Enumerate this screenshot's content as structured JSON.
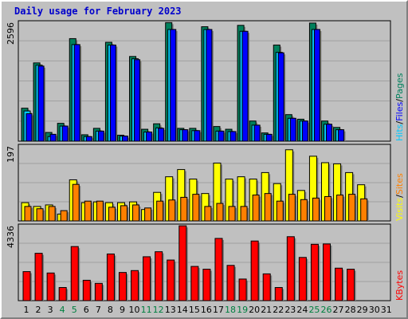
{
  "chart_data": {
    "type": "bar",
    "title": "Daily usage for February 2023",
    "colors": {
      "pages": "#00805c",
      "files": "#0000ff",
      "hits": "#00c8ff",
      "visits": "#ffff00",
      "sites": "#ff8000",
      "kbytes": "#ff0000",
      "weekend_day": "#008040",
      "weekday": "#000000",
      "background": "#c0c0c0"
    },
    "categories": [
      "1",
      "2",
      "3",
      "4",
      "5",
      "6",
      "7",
      "8",
      "9",
      "10",
      "11",
      "12",
      "13",
      "14",
      "15",
      "16",
      "17",
      "18",
      "19",
      "20",
      "21",
      "22",
      "23",
      "24",
      "25",
      "26",
      "27",
      "28",
      "29",
      "30",
      "31"
    ],
    "weekend_days": [
      "4",
      "5",
      "11",
      "12",
      "18",
      "19",
      "25",
      "26"
    ],
    "panels": [
      {
        "name": "hits",
        "ymax_label": "2596",
        "ylim": [
          0,
          2596
        ],
        "legend": [
          "Pages",
          "/",
          "Files",
          "/",
          "Hits"
        ],
        "series": [
          {
            "name": "Pages",
            "values": [
              720,
              1710,
              190,
              390,
              2240,
              140,
              280,
              2160,
              130,
              1850,
              260,
              380,
              2590,
              280,
              280,
              2500,
              320,
              260,
              2530,
              440,
              180,
              2100,
              580,
              480,
              2580,
              440,
              300,
              null,
              null,
              null,
              null
            ]
          },
          {
            "name": "Files",
            "values": [
              600,
              1640,
              150,
              330,
              2110,
              100,
              220,
              2100,
              110,
              1780,
              200,
              280,
              2440,
              250,
              230,
              2440,
              220,
              210,
              2400,
              350,
              150,
              1930,
              500,
              440,
              2440,
              370,
              250,
              null,
              null,
              null,
              null
            ]
          },
          {
            "name": "Hits",
            "values": [
              660,
              1660,
              100,
              330,
              2110,
              100,
              220,
              2100,
              110,
              1800,
              200,
              290,
              2440,
              250,
              230,
              2440,
              220,
              210,
              2400,
              350,
              150,
              1940,
              500,
              440,
              2440,
              370,
              250,
              null,
              null,
              null,
              null
            ]
          }
        ]
      },
      {
        "name": "visits",
        "ymax_label": "197",
        "ylim": [
          0,
          197
        ],
        "legend": [
          "Sites",
          "/",
          "Visits"
        ],
        "series": [
          {
            "name": "Visits",
            "values": [
              48,
              38,
              42,
              18,
              108,
              48,
              50,
              48,
              48,
              50,
              30,
              75,
              116,
              135,
              110,
              72,
              152,
              110,
              116,
              110,
              127,
              98,
              187,
              80,
              170,
              153,
              150,
              127,
              95,
              null,
              null
            ]
          },
          {
            "name": "Sites",
            "values": [
              38,
              32,
              38,
              27,
              96,
              52,
              52,
              36,
              40,
              42,
              34,
              52,
              55,
              62,
              70,
              38,
              46,
              38,
              38,
              68,
              72,
              52,
              70,
              56,
              60,
              64,
              68,
              70,
              58,
              null,
              null
            ]
          }
        ]
      },
      {
        "name": "kbytes",
        "ymax_label": "4336",
        "ylim": [
          0,
          4336
        ],
        "legend": [
          "KBytes"
        ],
        "series": [
          {
            "name": "KBytes",
            "values": [
              1680,
              2740,
              1600,
              760,
              3130,
              1180,
              1000,
              2700,
              1630,
              1740,
              2540,
              2830,
              2350,
              4330,
              1980,
              1820,
              3600,
              2040,
              1250,
              3450,
              1550,
              760,
              3700,
              2500,
              3260,
              3280,
              1880,
              1820,
              null,
              null,
              null
            ]
          }
        ]
      }
    ]
  }
}
